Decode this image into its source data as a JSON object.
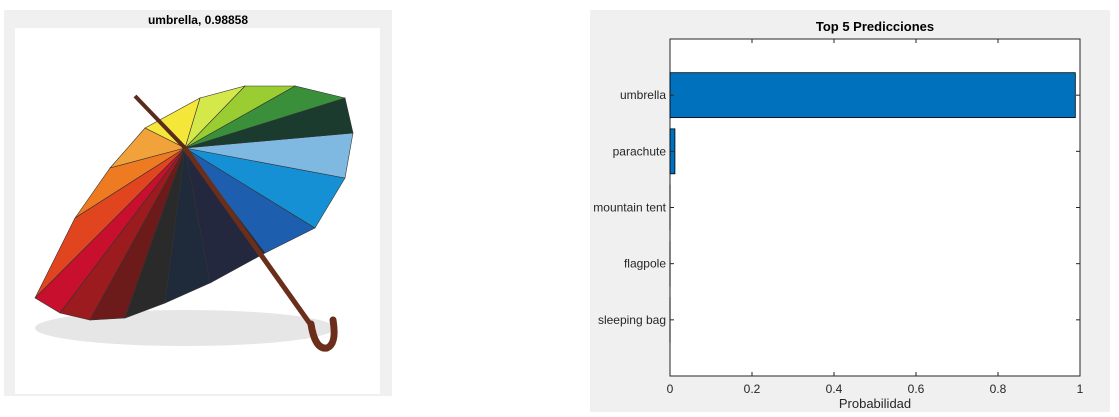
{
  "image_panel": {
    "title": "umbrella, 0.98858",
    "icon": "umbrella-image"
  },
  "chart_data": {
    "type": "bar",
    "orientation": "horizontal",
    "title": "Top 5 Predicciones",
    "xlabel": "Probabilidad",
    "ylabel": "",
    "categories": [
      "umbrella",
      "parachute",
      "mountain tent",
      "flagpole",
      "sleeping bag"
    ],
    "values": [
      0.98858,
      0.012,
      0.0002,
      0.0001,
      0.0001
    ],
    "xlim": [
      0,
      1
    ],
    "xticks": [
      0,
      0.2,
      0.4,
      0.6,
      0.8,
      1
    ],
    "xtick_labels": [
      "0",
      "0.2",
      "0.4",
      "0.6",
      "0.8",
      "1"
    ],
    "bar_color": "#0072BD",
    "grid": false,
    "legend": "none"
  }
}
